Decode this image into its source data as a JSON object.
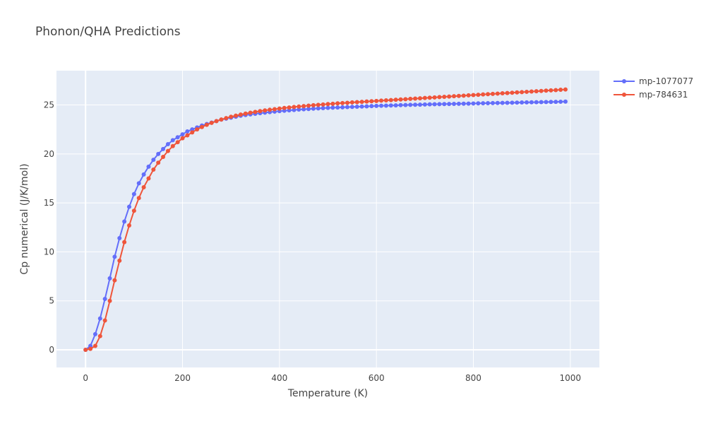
{
  "chart_data": {
    "type": "line",
    "title": "Phonon/QHA Predictions",
    "xlabel": "Temperature (K)",
    "ylabel": "Cp numerical (J/K/mol)",
    "xlim": [
      -60,
      1060
    ],
    "ylim": [
      -1.8,
      28.5
    ],
    "xticks": [
      0,
      200,
      400,
      600,
      800,
      1000
    ],
    "yticks": [
      0,
      5,
      10,
      15,
      20,
      25
    ],
    "grid": true,
    "legend": "top-right",
    "colors": {
      "plot_bg": "#E5ECF6",
      "grid": "#ffffff"
    },
    "series": [
      {
        "name": "mp-1077077",
        "color": "#636EFA",
        "marker": "circle",
        "x": [
          0,
          10,
          20,
          30,
          40,
          50,
          60,
          70,
          80,
          90,
          100,
          110,
          120,
          130,
          140,
          150,
          160,
          170,
          180,
          190,
          200,
          210,
          220,
          230,
          240,
          250,
          260,
          270,
          280,
          290,
          300,
          310,
          320,
          330,
          340,
          350,
          360,
          370,
          380,
          390,
          400,
          410,
          420,
          430,
          440,
          450,
          460,
          470,
          480,
          490,
          500,
          510,
          520,
          530,
          540,
          550,
          560,
          570,
          580,
          590,
          600,
          610,
          620,
          630,
          640,
          650,
          660,
          670,
          680,
          690,
          700,
          710,
          720,
          730,
          740,
          750,
          760,
          770,
          780,
          790,
          800,
          810,
          820,
          830,
          840,
          850,
          860,
          870,
          880,
          890,
          900,
          910,
          920,
          930,
          940,
          950,
          960,
          970,
          980,
          990
        ],
        "y": [
          0,
          0.4,
          1.6,
          3.2,
          5.2,
          7.3,
          9.5,
          11.4,
          13.1,
          14.6,
          15.9,
          17,
          17.9,
          18.7,
          19.4,
          20,
          20.5,
          21,
          21.4,
          21.7,
          22,
          22.3,
          22.5,
          22.7,
          22.9,
          23.05,
          23.2,
          23.35,
          23.5,
          23.6,
          23.7,
          23.8,
          23.9,
          23.97,
          24.04,
          24.1,
          24.16,
          24.22,
          24.27,
          24.32,
          24.37,
          24.41,
          24.45,
          24.49,
          24.53,
          24.56,
          24.59,
          24.62,
          24.65,
          24.68,
          24.7,
          24.72,
          24.74,
          24.76,
          24.78,
          24.8,
          24.82,
          24.84,
          24.86,
          24.88,
          24.9,
          24.92,
          24.93,
          24.95,
          24.96,
          24.98,
          24.99,
          25.01,
          25.02,
          25.03,
          25.05,
          25.06,
          25.07,
          25.08,
          25.09,
          25.1,
          25.11,
          25.12,
          25.13,
          25.14,
          25.15,
          25.16,
          25.17,
          25.18,
          25.19,
          25.2,
          25.21,
          25.22,
          25.23,
          25.24,
          25.25,
          25.26,
          25.27,
          25.28,
          25.29,
          25.3,
          25.31,
          25.32,
          25.33,
          25.34
        ]
      },
      {
        "name": "mp-784631",
        "color": "#EF553B",
        "marker": "circle",
        "x": [
          0,
          10,
          20,
          30,
          40,
          50,
          60,
          70,
          80,
          90,
          100,
          110,
          120,
          130,
          140,
          150,
          160,
          170,
          180,
          190,
          200,
          210,
          220,
          230,
          240,
          250,
          260,
          270,
          280,
          290,
          300,
          310,
          320,
          330,
          340,
          350,
          360,
          370,
          380,
          390,
          400,
          410,
          420,
          430,
          440,
          450,
          460,
          470,
          480,
          490,
          500,
          510,
          520,
          530,
          540,
          550,
          560,
          570,
          580,
          590,
          600,
          610,
          620,
          630,
          640,
          650,
          660,
          670,
          680,
          690,
          700,
          710,
          720,
          730,
          740,
          750,
          760,
          770,
          780,
          790,
          800,
          810,
          820,
          830,
          840,
          850,
          860,
          870,
          880,
          890,
          900,
          910,
          920,
          930,
          940,
          950,
          960,
          970,
          980,
          990
        ],
        "y": [
          0,
          0.1,
          0.4,
          1.4,
          3,
          5,
          7.1,
          9.1,
          11,
          12.7,
          14.2,
          15.5,
          16.6,
          17.5,
          18.4,
          19.1,
          19.7,
          20.3,
          20.8,
          21.2,
          21.6,
          21.9,
          22.2,
          22.5,
          22.75,
          22.97,
          23.17,
          23.35,
          23.51,
          23.66,
          23.79,
          23.91,
          24.02,
          24.12,
          24.21,
          24.29,
          24.37,
          24.44,
          24.51,
          24.57,
          24.63,
          24.69,
          24.74,
          24.79,
          24.84,
          24.88,
          24.93,
          24.97,
          25.01,
          25.05,
          25.09,
          25.12,
          25.16,
          25.19,
          25.22,
          25.26,
          25.29,
          25.32,
          25.35,
          25.38,
          25.41,
          25.44,
          25.47,
          25.5,
          25.53,
          25.56,
          25.59,
          25.62,
          25.65,
          25.68,
          25.71,
          25.74,
          25.77,
          25.8,
          25.83,
          25.86,
          25.89,
          25.92,
          25.95,
          25.98,
          26.01,
          26.04,
          26.07,
          26.1,
          26.13,
          26.16,
          26.19,
          26.22,
          26.25,
          26.28,
          26.31,
          26.34,
          26.37,
          26.4,
          26.43,
          26.46,
          26.49,
          26.52,
          26.55,
          26.58
        ]
      }
    ]
  }
}
